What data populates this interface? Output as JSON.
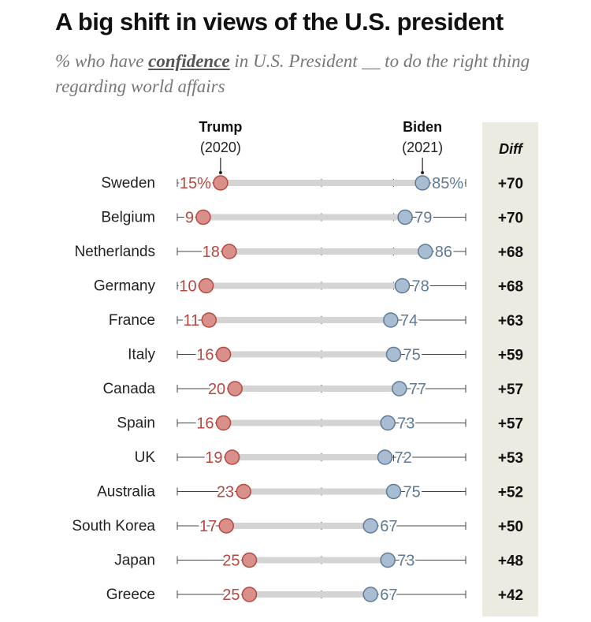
{
  "title": "A big shift in views of the U.S. president",
  "subtitle": {
    "prefix": "% who have ",
    "emphasis": "confidence",
    "suffix": " in U.S. President __ to do the right thing regarding world affairs"
  },
  "chart_data": {
    "type": "dot",
    "title": "A big shift in views of the U.S. president",
    "xlim": [
      0,
      100
    ],
    "series": [
      {
        "name": "Trump",
        "period": "(2020)",
        "color": "#d9908b",
        "stroke": "#b5483f",
        "text_color": "#b5483f"
      },
      {
        "name": "Biden",
        "period": "(2021)",
        "color": "#a9bdd2",
        "stroke": "#5f7a96",
        "text_color": "#5f7a96"
      }
    ],
    "diff_header": "Diff",
    "rows": [
      {
        "country": "Sweden",
        "trump": 15,
        "biden": 85,
        "trump_label": "15%",
        "biden_label": "85%",
        "diff": "+70"
      },
      {
        "country": "Belgium",
        "trump": 9,
        "biden": 79,
        "trump_label": "9",
        "biden_label": "79",
        "diff": "+70"
      },
      {
        "country": "Netherlands",
        "trump": 18,
        "biden": 86,
        "trump_label": "18",
        "biden_label": "86",
        "diff": "+68"
      },
      {
        "country": "Germany",
        "trump": 10,
        "biden": 78,
        "trump_label": "10",
        "biden_label": "78",
        "diff": "+68"
      },
      {
        "country": "France",
        "trump": 11,
        "biden": 74,
        "trump_label": "11",
        "biden_label": "74",
        "diff": "+63"
      },
      {
        "country": "Italy",
        "trump": 16,
        "biden": 75,
        "trump_label": "16",
        "biden_label": "75",
        "diff": "+59"
      },
      {
        "country": "Canada",
        "trump": 20,
        "biden": 77,
        "trump_label": "20",
        "biden_label": "77",
        "diff": "+57"
      },
      {
        "country": "Spain",
        "trump": 16,
        "biden": 73,
        "trump_label": "16",
        "biden_label": "73",
        "diff": "+57"
      },
      {
        "country": "UK",
        "trump": 19,
        "biden": 72,
        "trump_label": "19",
        "biden_label": "72",
        "diff": "+53"
      },
      {
        "country": "Australia",
        "trump": 23,
        "biden": 75,
        "trump_label": "23",
        "biden_label": "75",
        "diff": "+52"
      },
      {
        "country": "South Korea",
        "trump": 17,
        "biden": 67,
        "trump_label": "17",
        "biden_label": "67",
        "diff": "+50"
      },
      {
        "country": "Japan",
        "trump": 25,
        "biden": 73,
        "trump_label": "25",
        "biden_label": "73",
        "diff": "+48"
      },
      {
        "country": "Greece",
        "trump": 25,
        "biden": 67,
        "trump_label": "25",
        "biden_label": "67",
        "diff": "+42"
      }
    ]
  }
}
